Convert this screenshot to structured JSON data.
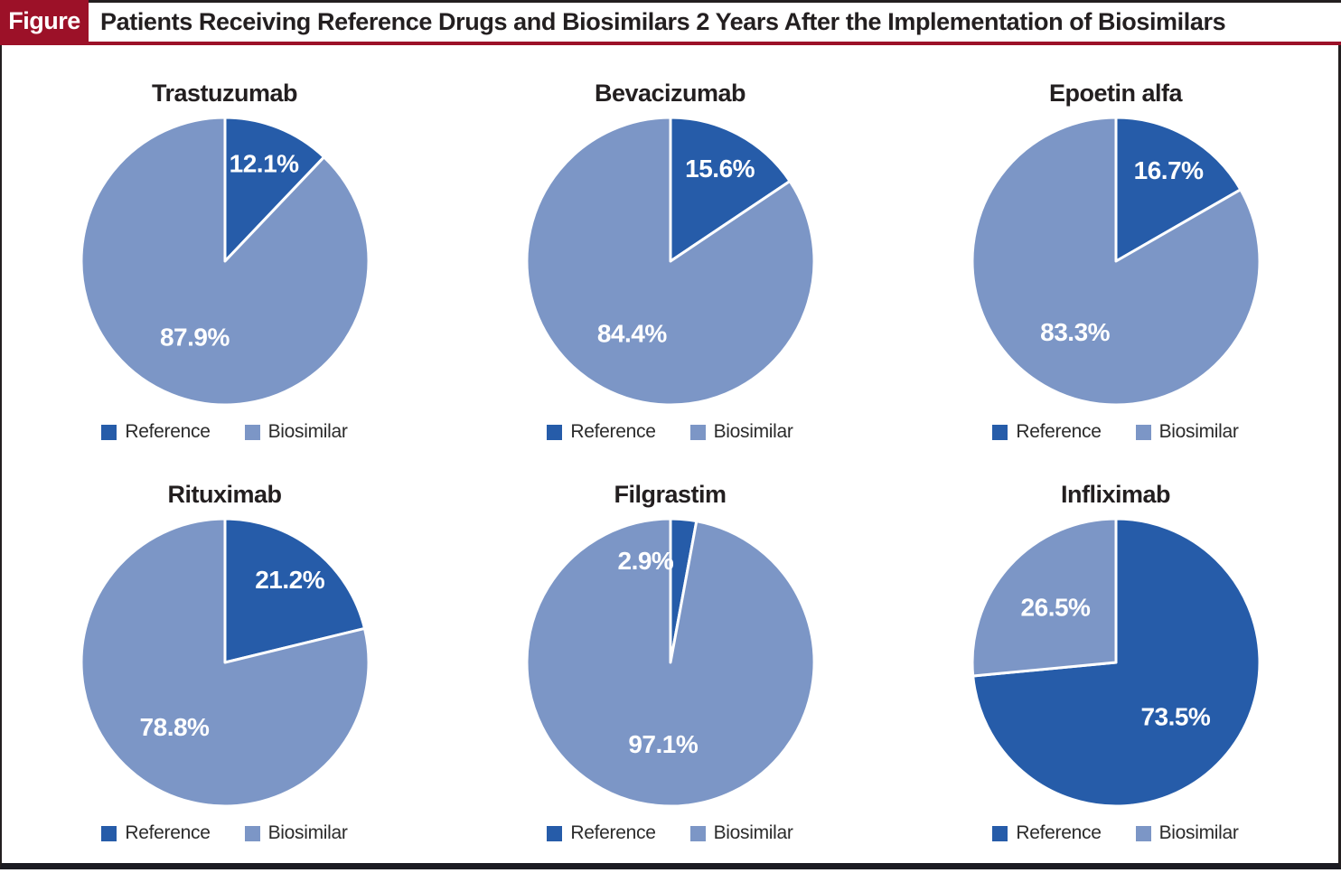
{
  "header": {
    "tag": "Figure",
    "title": "Patients Receiving Reference Drugs and Biosimilars 2 Years After the Implementation of Biosimilars"
  },
  "legend": {
    "reference": "Reference",
    "biosimilar": "Biosimilar"
  },
  "colors": {
    "reference": "#265CA9",
    "biosimilar": "#7C96C6",
    "header_red": "#9C1128",
    "border_dark": "#1B1B22",
    "text_ink": "#231F20",
    "value_label": "#FFFFFF"
  },
  "chart_data": [
    {
      "type": "pie",
      "title": "Trastuzumab",
      "slices": [
        {
          "label": "Reference",
          "value": 12.1,
          "display": "12.1%"
        },
        {
          "label": "Biosimilar",
          "value": 87.9,
          "display": "87.9%"
        }
      ]
    },
    {
      "type": "pie",
      "title": "Bevacizumab",
      "slices": [
        {
          "label": "Reference",
          "value": 15.6,
          "display": "15.6%"
        },
        {
          "label": "Biosimilar",
          "value": 84.4,
          "display": "84.4%"
        }
      ]
    },
    {
      "type": "pie",
      "title": "Epoetin alfa",
      "slices": [
        {
          "label": "Reference",
          "value": 16.7,
          "display": "16.7%"
        },
        {
          "label": "Biosimilar",
          "value": 83.3,
          "display": "83.3%"
        }
      ]
    },
    {
      "type": "pie",
      "title": "Rituximab",
      "slices": [
        {
          "label": "Reference",
          "value": 21.2,
          "display": "21.2%"
        },
        {
          "label": "Biosimilar",
          "value": 78.8,
          "display": "78.8%"
        }
      ]
    },
    {
      "type": "pie",
      "title": "Filgrastim",
      "slices": [
        {
          "label": "Reference",
          "value": 2.9,
          "display": "2.9%"
        },
        {
          "label": "Biosimilar",
          "value": 97.1,
          "display": "97.1%"
        }
      ]
    },
    {
      "type": "pie",
      "title": "Infliximab",
      "slices": [
        {
          "label": "Reference",
          "value": 73.5,
          "display": "73.5%"
        },
        {
          "label": "Biosimilar",
          "value": 26.5,
          "display": "26.5%"
        }
      ]
    }
  ]
}
